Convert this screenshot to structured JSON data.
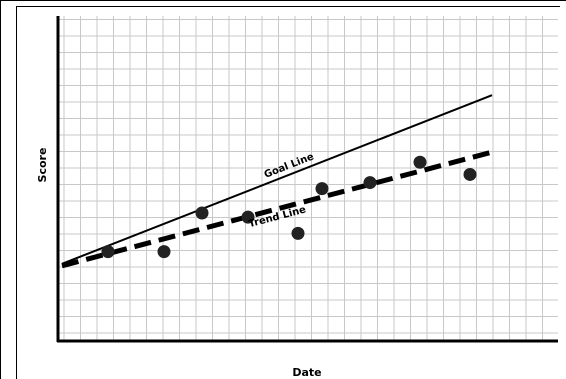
{
  "chart_data": {
    "type": "scatter",
    "title": "",
    "xlabel": "Date",
    "ylabel": "Score",
    "x_tick_labels": [],
    "y_tick_labels": [],
    "xlim": [
      0,
      25
    ],
    "ylim": [
      0,
      16
    ],
    "grid": true,
    "colors": {
      "grid": "#c8c8c8",
      "axis": "#000000",
      "points": "#222222",
      "lines": "#000000"
    },
    "points": [
      {
        "x": 2.5,
        "y": 4.4
      },
      {
        "x": 5.3,
        "y": 4.4
      },
      {
        "x": 7.2,
        "y": 6.3
      },
      {
        "x": 9.5,
        "y": 6.1
      },
      {
        "x": 12.0,
        "y": 5.3
      },
      {
        "x": 13.2,
        "y": 7.5
      },
      {
        "x": 15.6,
        "y": 7.8
      },
      {
        "x": 18.1,
        "y": 8.8
      },
      {
        "x": 20.6,
        "y": 8.2
      }
    ],
    "goal_line": {
      "label": "Goal Line",
      "x": [
        0.2,
        21.7
      ],
      "y": [
        3.8,
        12.1
      ],
      "style": "solid"
    },
    "trend_line": {
      "label": "Trend Line",
      "x": [
        0.2,
        21.7
      ],
      "y": [
        3.7,
        9.3
      ],
      "style": "dashed"
    }
  }
}
